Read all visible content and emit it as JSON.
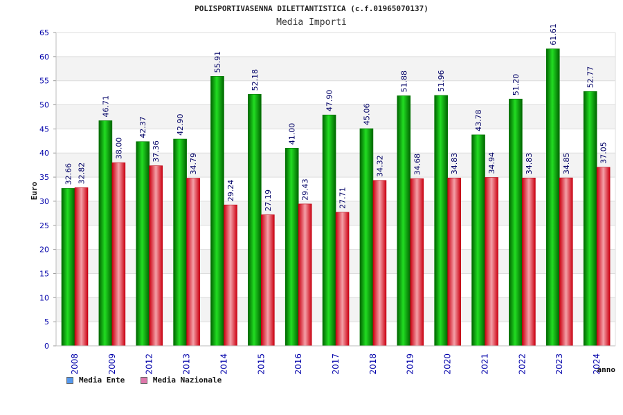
{
  "chart_data": {
    "type": "bar",
    "title": "POLISPORTIVASENNA DILETTANTISTICA (c.f.01965070137)",
    "subtitle": "Media Importi",
    "ylabel": "Euro",
    "xlabel": "anno",
    "ylim": [
      0,
      65
    ],
    "yticks": [
      0,
      5,
      10,
      15,
      20,
      25,
      30,
      35,
      40,
      45,
      50,
      55,
      60,
      65
    ],
    "grid": true,
    "legend_position": "bottom-left",
    "categories": [
      "2008",
      "2009",
      "2012",
      "2013",
      "2014",
      "2015",
      "2016",
      "2017",
      "2018",
      "2019",
      "2020",
      "2021",
      "2022",
      "2023",
      "2024"
    ],
    "series": [
      {
        "name": "Media Ente",
        "color": "#00aa00",
        "legend_color": "#5599ee",
        "values": [
          32.66,
          46.71,
          42.37,
          42.9,
          55.91,
          52.18,
          41.0,
          47.9,
          45.06,
          51.88,
          51.96,
          43.78,
          51.2,
          61.61,
          52.77
        ],
        "labels": [
          "32.66",
          "46.71",
          "42.37",
          "42.90",
          "55.91",
          "52.18",
          "41.00",
          "47.90",
          "45.06",
          "51.88",
          "51.96",
          "43.78",
          "51.20",
          "61.61",
          "52.77"
        ]
      },
      {
        "name": "Media Nazionale",
        "color": "#ee2233",
        "legend_color": "#dd77aa",
        "values": [
          32.82,
          38.0,
          37.36,
          34.79,
          29.24,
          27.19,
          29.43,
          27.71,
          34.32,
          34.68,
          34.83,
          34.94,
          34.83,
          34.85,
          37.05
        ],
        "labels": [
          "32.82",
          "38.00",
          "37.36",
          "34.79",
          "29.24",
          "27.19",
          "29.43",
          "27.71",
          "34.32",
          "34.68",
          "34.83",
          "34.94",
          "34.83",
          "34.85",
          "37.05"
        ]
      }
    ]
  }
}
